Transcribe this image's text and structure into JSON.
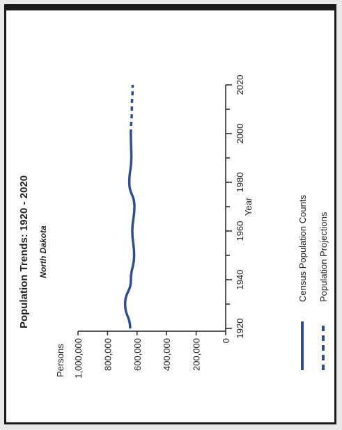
{
  "chart_data": {
    "type": "line",
    "title": "Population Trends: 1920 - 2020",
    "subtitle": "North Dakota",
    "xlabel": "Year",
    "ylabel": "Persons",
    "x_ticks": [
      1920,
      1940,
      1960,
      1980,
      2000,
      2020
    ],
    "y_ticks": [
      "0",
      "200,000",
      "400,000",
      "600,000",
      "800,000",
      "1,000,000"
    ],
    "y_tick_values": [
      0,
      200000,
      400000,
      600000,
      800000,
      1000000
    ],
    "xlim": [
      1920,
      2020
    ],
    "ylim": [
      0,
      1000000
    ],
    "orientation": "rotated 90° counter-clockwise",
    "series": [
      {
        "name": "Census Population Counts",
        "style": "solid",
        "x": [
          1920,
          1930,
          1940,
          1950,
          1960,
          1970,
          1980,
          1990,
          2000
        ],
        "y": [
          646872,
          680845,
          641935,
          619636,
          632446,
          617761,
          652717,
          638800,
          642200
        ]
      },
      {
        "name": "Population Projections",
        "style": "dashed",
        "x": [
          2000,
          2010,
          2020
        ],
        "y": [
          642200,
          635468,
          630000
        ]
      }
    ],
    "legend": [
      "Census Population Counts",
      "Population Projections"
    ],
    "legend_placement": "bottom",
    "grid": false,
    "colors": {
      "line": "#2f4f8c"
    }
  }
}
